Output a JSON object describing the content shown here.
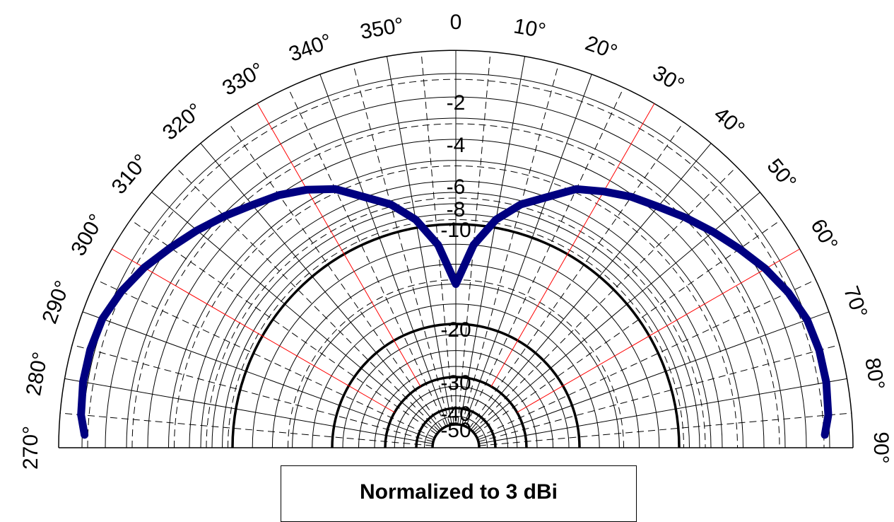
{
  "chart_data": {
    "type": "line",
    "subtype": "polar-half",
    "annotation": "Normalized to 3 dBi",
    "angle_labels": [
      "270°",
      "280°",
      "290°",
      "300°",
      "310°",
      "320°",
      "330°",
      "340°",
      "350°",
      "0",
      "10°",
      "20°",
      "30°",
      "40°",
      "50°",
      "60°",
      "70°",
      "80°",
      "90°"
    ],
    "angle_range": [
      -90,
      90
    ],
    "radial_labels": [
      "-2",
      "-4",
      "-6",
      "-8",
      "-10",
      "-20",
      "-30",
      "-40",
      "-50"
    ],
    "radial_range": [
      -60,
      0
    ],
    "grid": true,
    "colors": {
      "pattern": "#000080",
      "grid": "#000000",
      "spokes_major": "#ff0000"
    },
    "series": [
      {
        "angles": [
          -88,
          -85,
          -80,
          -75,
          -70,
          -65,
          -60,
          -55,
          -50,
          -45,
          -40,
          -35,
          -30,
          -25,
          -20,
          -15,
          -10,
          -5,
          0,
          5,
          10,
          15,
          20,
          25,
          30,
          35,
          40,
          45,
          50,
          55,
          60,
          65,
          70,
          75,
          80,
          85,
          88
        ],
        "values": [
          -1.1,
          -0.9,
          -0.8,
          -0.8,
          -0.9,
          -1.2,
          -1.6,
          -2.1,
          -2.6,
          -3.1,
          -3.6,
          -4.0,
          -4.5,
          -5.1,
          -6.0,
          -7.3,
          -9.2,
          -12.0,
          -16.0,
          -12.0,
          -9.2,
          -7.3,
          -6.0,
          -5.1,
          -4.6,
          -4.1,
          -3.7,
          -3.2,
          -2.7,
          -2.2,
          -1.7,
          -1.3,
          -1.0,
          -0.9,
          -0.9,
          -1.0,
          -1.2
        ]
      }
    ]
  }
}
